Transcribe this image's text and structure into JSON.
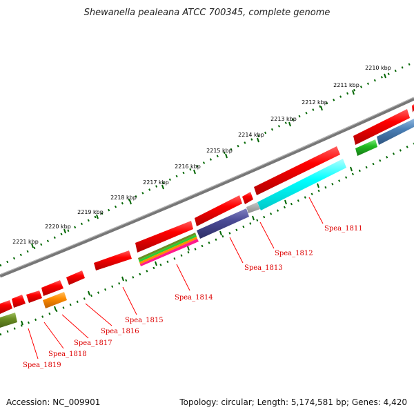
{
  "title": "Shewanella pealeana ATCC 700345, complete genome",
  "footer": {
    "accession": "Accession: NC_009901",
    "summary": "Topology: circular; Length: 5,174,581 bp; Genes: 4,420"
  },
  "scale_labels": [
    "2210 kbp",
    "2211 kbp",
    "2212 kbp",
    "2213 kbp",
    "2214 kbp",
    "2215 kbp",
    "2216 kbp",
    "2217 kbp",
    "2218 kbp",
    "2219 kbp",
    "2220 kbp",
    "2221 kbp"
  ],
  "genes": [
    "Spea_1811",
    "Spea_1812",
    "Spea_1813",
    "Spea_1814",
    "Spea_1815",
    "Spea_1816",
    "Spea_1817",
    "Spea_1818",
    "Spea_1819"
  ],
  "colors": {
    "cds": "#ee0000",
    "backbone": "#777777",
    "ticks": "#006600",
    "label": "#dd0000",
    "cyan": "#00ffff",
    "purple": "#4b4b96",
    "orange": "#ff8c00",
    "olive": "#6b8e23",
    "green": "#22bb22",
    "steelblue": "#4a7fb5"
  }
}
